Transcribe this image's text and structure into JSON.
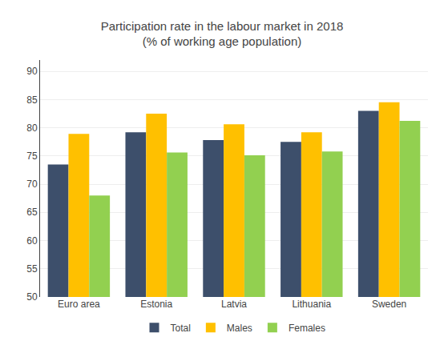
{
  "chart_data": {
    "type": "bar",
    "title": "Participation rate in the labour market in 2018\n(% of working age population)",
    "categories": [
      "Euro area",
      "Estonia",
      "Latvia",
      "Lithuania",
      "Sweden"
    ],
    "series": [
      {
        "name": "Total",
        "color": "#3d4f6b",
        "values": [
          73.5,
          79.2,
          77.8,
          77.5,
          83.0
        ]
      },
      {
        "name": "Males",
        "color": "#ffc000",
        "values": [
          78.9,
          82.5,
          80.6,
          79.2,
          84.5
        ]
      },
      {
        "name": "Females",
        "color": "#92d050",
        "values": [
          68.0,
          75.6,
          75.1,
          75.8,
          81.2
        ]
      }
    ],
    "ylim": [
      50,
      92
    ],
    "yticks": [
      50,
      55,
      60,
      65,
      70,
      75,
      80,
      85,
      90
    ],
    "grid": true,
    "legend": "bottom"
  }
}
